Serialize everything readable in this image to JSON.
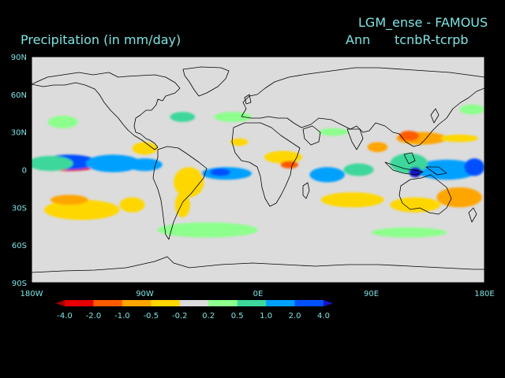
{
  "titles": {
    "left": "Precipitation (in mm/day)",
    "right_top": "LGM_ense - FAMOUS",
    "right_season": "Ann",
    "right_diff": "tcnbR-tcrpb"
  },
  "map": {
    "projection": "cylindrical equidistant",
    "lon_range": [
      -180,
      180
    ],
    "lat_range": [
      -90,
      90
    ],
    "background_color": "#dcdcdc",
    "lat_ticks": [
      {
        "value": 90,
        "label": "90N"
      },
      {
        "value": 60,
        "label": "60N"
      },
      {
        "value": 30,
        "label": "30N"
      },
      {
        "value": 0,
        "label": "0"
      },
      {
        "value": -30,
        "label": "30S"
      },
      {
        "value": -60,
        "label": "60S"
      },
      {
        "value": -90,
        "label": "90S"
      }
    ],
    "lon_ticks": [
      {
        "value": -180,
        "label": "180W"
      },
      {
        "value": -90,
        "label": "90W"
      },
      {
        "value": 0,
        "label": "0E"
      },
      {
        "value": 90,
        "label": "90E"
      },
      {
        "value": 180,
        "label": "180E"
      }
    ]
  },
  "colorbar": {
    "labels": [
      "-4.0",
      "-2.0",
      "-1.0",
      "-0.5",
      "-0.2",
      "0.2",
      "0.5",
      "1.0",
      "2.0",
      "4.0"
    ],
    "colors": [
      "#a00000",
      "#e60000",
      "#ff5a00",
      "#ffa500",
      "#ffd700",
      "#dcdcdc",
      "#8cff8c",
      "#3cd79b",
      "#00a0ff",
      "#0050ff",
      "#1414c8"
    ]
  },
  "field_patches": [
    {
      "lon": -150,
      "lat": 3,
      "rlon": 22,
      "rlat": 4,
      "level": 1
    },
    {
      "lon": -150,
      "lat": 6,
      "rlon": 22,
      "rlat": 6,
      "level": 9
    },
    {
      "lon": -115,
      "lat": 5,
      "rlon": 22,
      "rlat": 7,
      "level": 8
    },
    {
      "lon": -165,
      "lat": 5,
      "rlon": 18,
      "rlat": 6,
      "level": 7
    },
    {
      "lon": -90,
      "lat": 4,
      "rlon": 14,
      "rlat": 5,
      "level": 8
    },
    {
      "lon": -25,
      "lat": -3,
      "rlon": 20,
      "rlat": 5,
      "level": 8
    },
    {
      "lon": -30,
      "lat": -2,
      "rlon": 8,
      "rlat": 3,
      "level": 9
    },
    {
      "lon": 55,
      "lat": -4,
      "rlon": 14,
      "rlat": 6,
      "level": 8
    },
    {
      "lon": 80,
      "lat": 0,
      "rlon": 12,
      "rlat": 5,
      "level": 7
    },
    {
      "lon": 150,
      "lat": 0,
      "rlon": 25,
      "rlat": 8,
      "level": 8
    },
    {
      "lon": 172,
      "lat": 2,
      "rlon": 8,
      "rlat": 7,
      "level": 9
    },
    {
      "lon": 120,
      "lat": 5,
      "rlon": 15,
      "rlat": 8,
      "level": 7
    },
    {
      "lon": -155,
      "lat": 38,
      "rlon": 12,
      "rlat": 5,
      "level": 6
    },
    {
      "lon": -20,
      "lat": 42,
      "rlon": 15,
      "rlat": 4,
      "level": 6
    },
    {
      "lon": -60,
      "lat": 42,
      "rlon": 10,
      "rlat": 4,
      "level": 7
    },
    {
      "lon": 170,
      "lat": 48,
      "rlon": 10,
      "rlat": 4,
      "level": 6
    },
    {
      "lon": 60,
      "lat": 30,
      "rlon": 12,
      "rlat": 3,
      "level": 6
    },
    {
      "lon": -40,
      "lat": -48,
      "rlon": 40,
      "rlat": 6,
      "level": 6
    },
    {
      "lon": 120,
      "lat": -50,
      "rlon": 30,
      "rlat": 4,
      "level": 6
    },
    {
      "lon": -140,
      "lat": -32,
      "rlon": 30,
      "rlat": 8,
      "level": 4
    },
    {
      "lon": -150,
      "lat": -24,
      "rlon": 15,
      "rlat": 4,
      "level": 3
    },
    {
      "lon": -100,
      "lat": -28,
      "rlon": 10,
      "rlat": 6,
      "level": 4
    },
    {
      "lon": 75,
      "lat": -24,
      "rlon": 25,
      "rlat": 6,
      "level": 4
    },
    {
      "lon": 125,
      "lat": -28,
      "rlon": 20,
      "rlat": 6,
      "level": 4
    },
    {
      "lon": 160,
      "lat": -22,
      "rlon": 18,
      "rlat": 8,
      "level": 3
    },
    {
      "lon": 130,
      "lat": 25,
      "rlon": 20,
      "rlat": 5,
      "level": 3
    },
    {
      "lon": 120,
      "lat": 27,
      "rlon": 8,
      "rlat": 4,
      "level": 2
    },
    {
      "lon": 160,
      "lat": 25,
      "rlon": 15,
      "rlat": 3,
      "level": 4
    },
    {
      "lon": 20,
      "lat": 10,
      "rlon": 15,
      "rlat": 5,
      "level": 4
    },
    {
      "lon": 25,
      "lat": 4,
      "rlon": 7,
      "rlat": 3,
      "level": 2
    },
    {
      "lon": -55,
      "lat": -10,
      "rlon": 12,
      "rlat": 12,
      "level": 4
    },
    {
      "lon": -60,
      "lat": -28,
      "rlon": 6,
      "rlat": 10,
      "level": 4
    },
    {
      "lon": -90,
      "lat": 17,
      "rlon": 10,
      "rlat": 5,
      "level": 4
    },
    {
      "lon": 95,
      "lat": 18,
      "rlon": 8,
      "rlat": 4,
      "level": 3
    },
    {
      "lon": 125,
      "lat": -2,
      "rlon": 5,
      "rlat": 4,
      "level": 10
    },
    {
      "lon": -15,
      "lat": 22,
      "rlon": 7,
      "rlat": 3,
      "level": 4
    }
  ]
}
